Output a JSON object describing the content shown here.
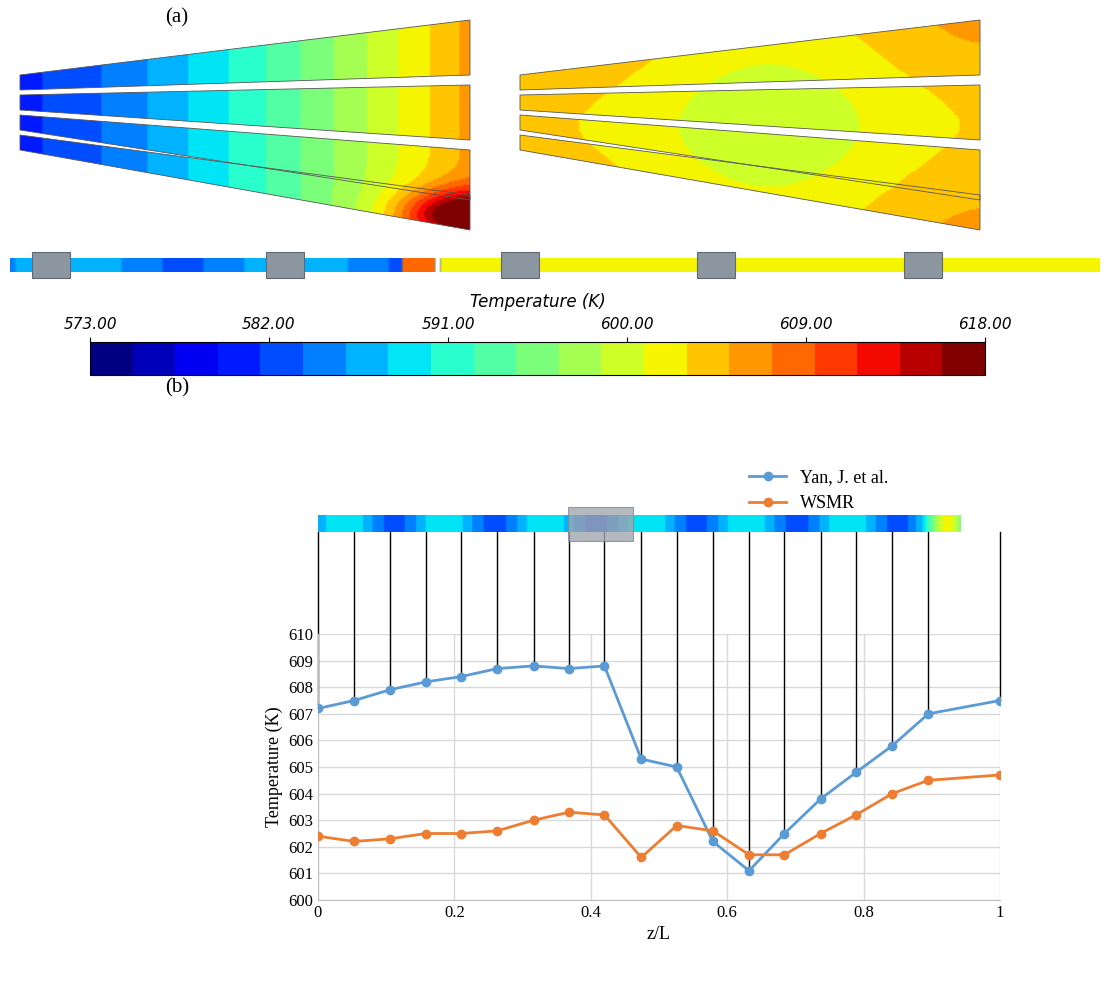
{
  "chart_data": [
    {
      "type": "contour",
      "title": "(a)",
      "colorbar": {
        "label": "Temperature (K)",
        "range": [
          573,
          618
        ],
        "ticks": [
          {
            "value": 573,
            "label": "573.00"
          },
          {
            "value": 582,
            "label": "582.00"
          },
          {
            "value": 591,
            "label": "591.00"
          },
          {
            "value": 600,
            "label": "600.00"
          },
          {
            "value": 609,
            "label": "609.00"
          },
          {
            "value": 618,
            "label": "618.00"
          }
        ]
      }
    },
    {
      "type": "line",
      "title": "(b)",
      "xlabel": "z/L",
      "ylabel": "Temperature (K)",
      "xlim": [
        0,
        1
      ],
      "xticks": [
        0,
        0.2,
        0.4,
        0.6,
        0.8,
        1
      ],
      "ylim": [
        600,
        610
      ],
      "yticks": [
        600,
        601,
        602,
        603,
        604,
        605,
        606,
        607,
        608,
        609,
        610
      ],
      "grid": true,
      "legend": "upper right",
      "x": [
        0,
        0.053,
        0.105,
        0.158,
        0.21,
        0.263,
        0.316,
        0.368,
        0.42,
        0.474,
        0.526,
        0.579,
        0.632,
        0.684,
        0.737,
        0.789,
        0.842,
        0.895,
        1
      ],
      "series": [
        {
          "name": "Yan, J. et al.",
          "color": "#5b9bd5",
          "marker": "o",
          "line_style": "solid",
          "values": [
            607.2,
            607.5,
            607.9,
            608.2,
            608.4,
            608.7,
            608.8,
            608.7,
            608.8,
            605.3,
            605.0,
            602.2,
            601.1,
            602.5,
            603.8,
            604.8,
            605.8,
            607.0,
            607.5
          ]
        },
        {
          "name": "WSMR",
          "color": "#ed7d31",
          "marker": "o",
          "line_style": "solid",
          "values": [
            602.4,
            602.2,
            602.3,
            602.5,
            602.5,
            602.6,
            603.0,
            603.3,
            603.2,
            601.6,
            602.8,
            602.6,
            601.7,
            601.7,
            602.5,
            603.2,
            604.0,
            604.5,
            604.7
          ]
        }
      ]
    }
  ]
}
